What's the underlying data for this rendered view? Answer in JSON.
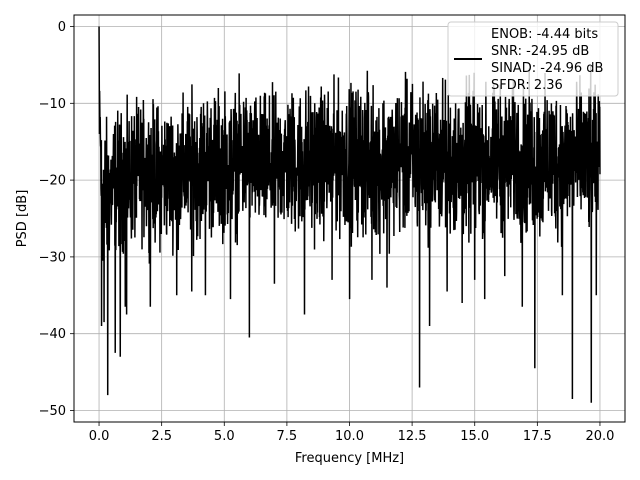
{
  "chart_data": {
    "type": "line",
    "title": "",
    "xlabel": "Frequency [MHz]",
    "ylabel": "PSD [dB]",
    "xlim": [
      -1.0,
      21.0
    ],
    "ylim": [
      -51.5,
      1.5
    ],
    "x_ticks": [
      0.0,
      2.5,
      5.0,
      7.5,
      10.0,
      12.5,
      15.0,
      17.5,
      20.0
    ],
    "x_tick_labels": [
      "0.0",
      "2.5",
      "5.0",
      "7.5",
      "10.0",
      "12.5",
      "15.0",
      "17.5",
      "20.0"
    ],
    "y_ticks": [
      0,
      -10,
      -20,
      -30,
      -40,
      -50
    ],
    "y_tick_labels": [
      "0",
      "−10",
      "−20",
      "−30",
      "−40",
      "−50"
    ],
    "grid": true,
    "legend_position": "top-right",
    "legend_lines": [
      "ENOB: -4.44 bits",
      "SNR: -24.95 dB",
      "SINAD: -24.96 dB",
      "SFDR: 2.36"
    ],
    "series": [
      {
        "color": "#000000",
        "x_range": [
          0.0,
          20.0
        ],
        "x": [
          0.0,
          0.02,
          0.1,
          0.15,
          0.3,
          0.5,
          0.55,
          0.8,
          1.0,
          1.05,
          1.6,
          2.0,
          2.4,
          3.0,
          3.6,
          4.1,
          5.3,
          5.8,
          6.0,
          6.5,
          7.3,
          8.2,
          9.0,
          10.1,
          11.0,
          11.6,
          12.0,
          12.7,
          13.3,
          13.8,
          14.3,
          15.0,
          15.2,
          15.6,
          16.0,
          16.8,
          17.1,
          17.7,
          18.0,
          18.3,
          18.6,
          18.9,
          19.3,
          19.7,
          20.0
        ],
        "upper": [
          0.0,
          -5.0,
          -11.0,
          -11.0,
          -11.0,
          -11.0,
          -10.0,
          -10.0,
          -10.0,
          -10.0,
          -9.0,
          -9.0,
          -9.0,
          -9.0,
          -8.0,
          -7.0,
          -7.5,
          -6.5,
          -7.5,
          -8.0,
          -7.5,
          -6.5,
          -7.0,
          -6.5,
          -6.0,
          -7.0,
          -6.5,
          -6.0,
          -6.5,
          -6.0,
          -7.0,
          -6.0,
          -7.0,
          -7.0,
          -6.5,
          -7.0,
          -6.0,
          -7.0,
          -6.0,
          -6.0,
          -7.0,
          -6.0,
          -6.5,
          -6.0,
          -9.0
        ],
        "lower": [
          -10.0,
          -14.0,
          -33.0,
          -33.0,
          -33.0,
          -31.0,
          -31.0,
          -30.0,
          -30.0,
          -30.0,
          -29.0,
          -29.0,
          -30.0,
          -29.0,
          -29.0,
          -29.0,
          -28.0,
          -28.0,
          -27.0,
          -29.0,
          -28.0,
          -29.0,
          -28.0,
          -28.0,
          -29.0,
          -29.0,
          -28.0,
          -29.0,
          -28.0,
          -28.0,
          -29.0,
          -29.0,
          -28.0,
          -28.0,
          -28.0,
          -28.0,
          -29.0,
          -29.0,
          -29.0,
          -29.0,
          -28.0,
          -28.0,
          -28.0,
          -29.0,
          -23.0
        ],
        "spikes": [
          {
            "x": 0.0,
            "y": 0.0
          },
          {
            "x": 0.1,
            "y": -39.0
          },
          {
            "x": 0.2,
            "y": -38.5
          },
          {
            "x": 0.35,
            "y": -48.0
          },
          {
            "x": 0.65,
            "y": -42.5
          },
          {
            "x": 0.85,
            "y": -43.0
          },
          {
            "x": 1.05,
            "y": -36.5
          },
          {
            "x": 1.1,
            "y": -37.5
          },
          {
            "x": 2.05,
            "y": -36.5
          },
          {
            "x": 3.1,
            "y": -35.0
          },
          {
            "x": 3.7,
            "y": -34.5
          },
          {
            "x": 4.25,
            "y": -35.0
          },
          {
            "x": 5.25,
            "y": -35.5
          },
          {
            "x": 6.0,
            "y": -40.5
          },
          {
            "x": 8.2,
            "y": -37.5
          },
          {
            "x": 10.0,
            "y": -35.5
          },
          {
            "x": 10.9,
            "y": -33.0
          },
          {
            "x": 12.8,
            "y": -47.0
          },
          {
            "x": 13.2,
            "y": -39.0
          },
          {
            "x": 14.5,
            "y": -36.0
          },
          {
            "x": 15.0,
            "y": -33.0
          },
          {
            "x": 15.4,
            "y": -35.5
          },
          {
            "x": 16.9,
            "y": -36.5
          },
          {
            "x": 17.4,
            "y": -44.5
          },
          {
            "x": 18.5,
            "y": -35.0
          },
          {
            "x": 18.9,
            "y": -48.5
          },
          {
            "x": 19.65,
            "y": -49.0
          },
          {
            "x": 19.85,
            "y": -35.0
          },
          {
            "x": 13.9,
            "y": -34.5
          },
          {
            "x": 9.3,
            "y": -33.0
          },
          {
            "x": 7.0,
            "y": -33.5
          },
          {
            "x": 11.5,
            "y": -34.0
          },
          {
            "x": 16.2,
            "y": -32.5
          }
        ]
      }
    ]
  }
}
